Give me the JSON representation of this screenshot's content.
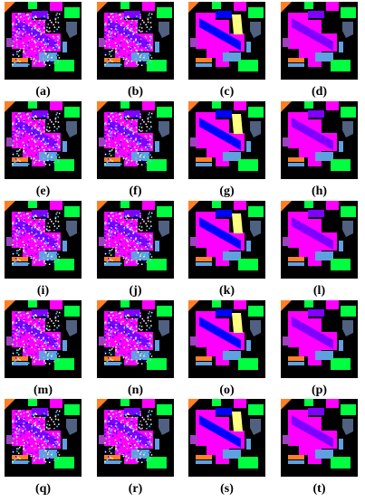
{
  "panels": [
    {
      "label": "(a)"
    },
    {
      "label": "(b)"
    },
    {
      "label": "(c)"
    },
    {
      "label": "(d)"
    },
    {
      "label": "(e)"
    },
    {
      "label": "(f)"
    },
    {
      "label": "(g)"
    },
    {
      "label": "(h)"
    },
    {
      "label": "(i)"
    },
    {
      "label": "(j)"
    },
    {
      "label": "(k)"
    },
    {
      "label": "(l)"
    },
    {
      "label": "(m)"
    },
    {
      "label": "(n)"
    },
    {
      "label": "(o)"
    },
    {
      "label": "(p)"
    },
    {
      "label": "(q)"
    },
    {
      "label": "(r)"
    },
    {
      "label": "(s)"
    },
    {
      "label": "(t)"
    }
  ]
}
